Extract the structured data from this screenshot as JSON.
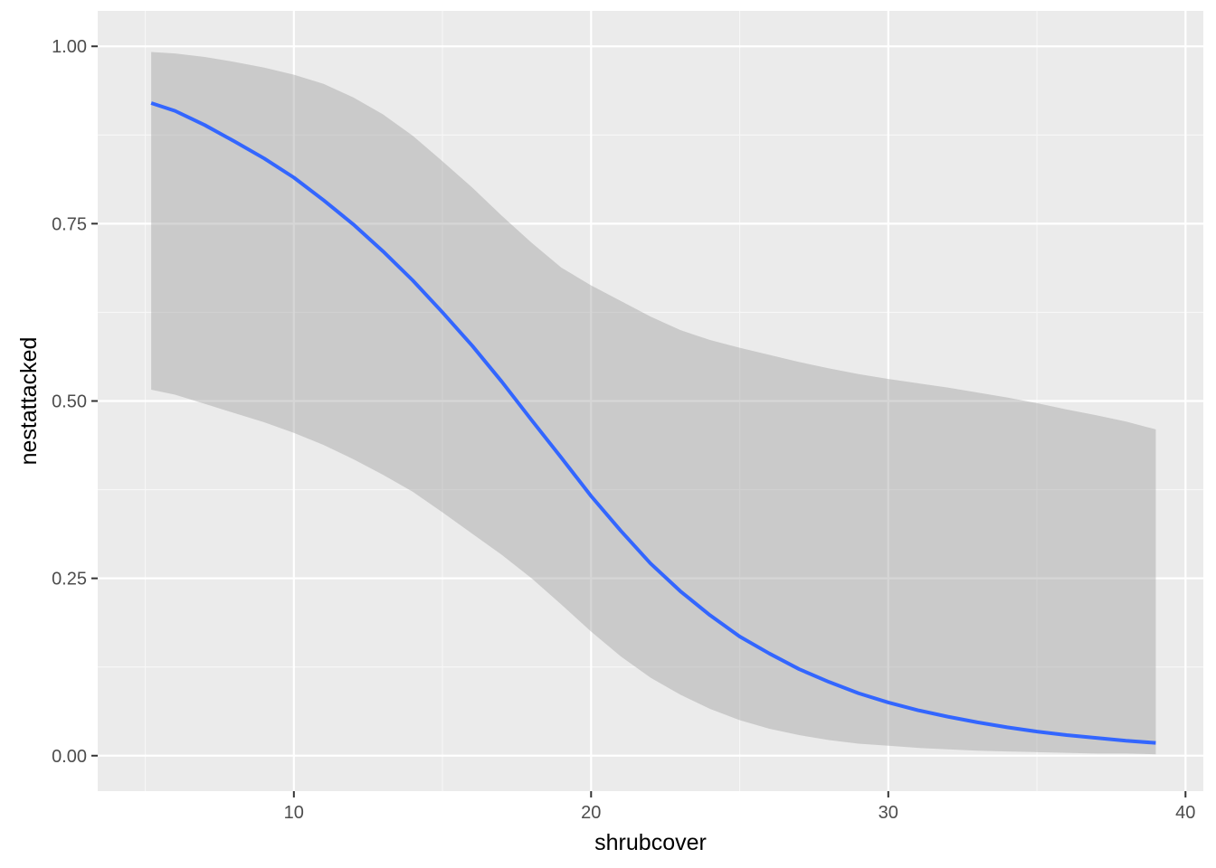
{
  "chart_data": {
    "type": "line",
    "xlabel": "shrubcover",
    "ylabel": "nestattacked",
    "xlim": [
      3.4,
      40.6
    ],
    "ylim": [
      -0.05,
      1.05
    ],
    "x_ticks": [
      10,
      20,
      30,
      40
    ],
    "x_tick_labels": [
      "10",
      "20",
      "30",
      "40"
    ],
    "x_minor_ticks": [
      5,
      15,
      25,
      35
    ],
    "y_ticks": [
      0,
      0.25,
      0.5,
      0.75,
      1.0
    ],
    "y_tick_labels": [
      "0.00",
      "0.25",
      "0.50",
      "0.75",
      "1.00"
    ],
    "y_minor_ticks": [
      0.125,
      0.375,
      0.625,
      0.875
    ],
    "grid": true,
    "legend": "none",
    "series": [
      {
        "x": [
          5.2,
          6,
          7,
          8,
          9,
          10,
          11,
          12,
          13,
          14,
          15,
          16,
          17,
          18,
          19,
          20,
          21,
          22,
          23,
          24,
          25,
          26,
          27,
          28,
          29,
          30,
          31,
          32,
          33,
          34,
          35,
          36,
          37,
          38,
          39
        ],
        "y": [
          0.92,
          0.909,
          0.889,
          0.866,
          0.842,
          0.815,
          0.783,
          0.749,
          0.711,
          0.67,
          0.625,
          0.578,
          0.527,
          0.473,
          0.42,
          0.366,
          0.317,
          0.271,
          0.232,
          0.198,
          0.168,
          0.144,
          0.122,
          0.104,
          0.088,
          0.075,
          0.064,
          0.055,
          0.047,
          0.04,
          0.034,
          0.029,
          0.025,
          0.021,
          0.018
        ],
        "ci_lower": [
          0.516,
          0.509,
          0.496,
          0.483,
          0.47,
          0.455,
          0.438,
          0.418,
          0.396,
          0.372,
          0.343,
          0.313,
          0.283,
          0.25,
          0.213,
          0.175,
          0.14,
          0.11,
          0.086,
          0.066,
          0.05,
          0.038,
          0.029,
          0.022,
          0.017,
          0.014,
          0.011,
          0.009,
          0.007,
          0.006,
          0.005,
          0.004,
          0.003,
          0.003,
          0.002
        ],
        "ci_upper": [
          0.992,
          0.99,
          0.985,
          0.978,
          0.97,
          0.96,
          0.947,
          0.928,
          0.904,
          0.874,
          0.838,
          0.801,
          0.761,
          0.723,
          0.688,
          0.663,
          0.641,
          0.619,
          0.6,
          0.586,
          0.575,
          0.565,
          0.555,
          0.546,
          0.538,
          0.531,
          0.525,
          0.519,
          0.512,
          0.505,
          0.497,
          0.488,
          0.48,
          0.471,
          0.46
        ]
      }
    ],
    "colors": {
      "panel_background": "#ebebeb",
      "grid_major": "#ffffff",
      "grid_minor": "#f7f7f7",
      "line": "#3366ff",
      "ribbon": "#999999",
      "tick": "#333333",
      "tick_label": "#4d4d4d",
      "axis_title": "#000000"
    }
  }
}
